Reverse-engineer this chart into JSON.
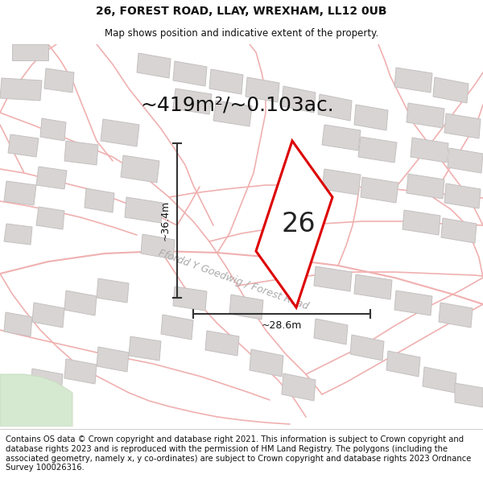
{
  "title_line1": "26, FOREST ROAD, LLAY, WREXHAM, LL12 0UB",
  "title_line2": "Map shows position and indicative extent of the property.",
  "area_text": "~419m²/~0.103ac.",
  "number_label": "26",
  "dim_height": "~36.4m",
  "dim_width": "~28.6m",
  "road_label": "Ffordd Y Goedwig / Forest Road",
  "footer_text": "Contains OS data © Crown copyright and database right 2021. This information is subject to Crown copyright and database rights 2023 and is reproduced with the permission of HM Land Registry. The polygons (including the associated geometry, namely x, y co-ordinates) are subject to Crown copyright and database rights 2023 Ordnance Survey 100026316.",
  "bg_color": "#ffffff",
  "map_bg_color": "#f0eeee",
  "road_color": "#f0b0b0",
  "road_lw": 1.2,
  "building_color": "#d8d4d4",
  "building_edge_color": "#c5c0c0",
  "plot_outline_color": "#dd0000",
  "dim_line_color": "#333333",
  "title_fontsize": 10,
  "subtitle_fontsize": 8.5,
  "area_fontsize": 18,
  "number_fontsize": 22,
  "dim_fontsize": 9,
  "road_label_fontsize": 9,
  "footer_fontsize": 7.2,
  "green_color": "#d5e8d0",
  "green_edge": "#c8dcc0"
}
